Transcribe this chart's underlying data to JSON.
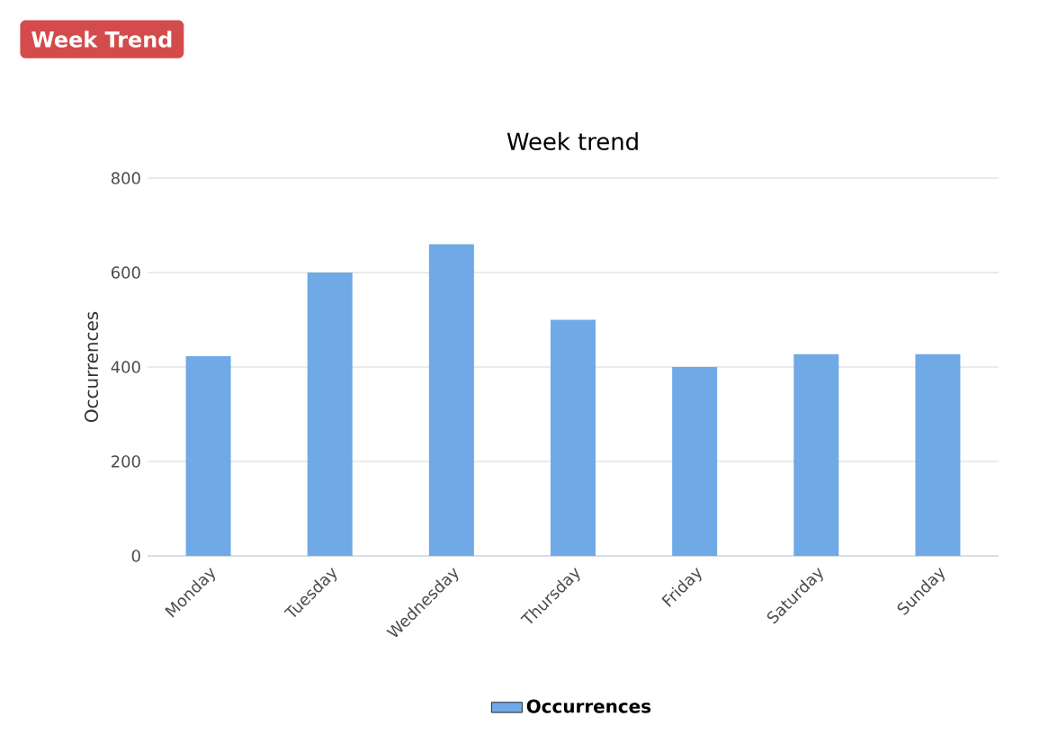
{
  "chart_data": {
    "type": "bar",
    "title": "Week trend",
    "ylabel": "Occurrences",
    "annotations": [
      "Week Trend"
    ],
    "categories": [
      "Monday",
      "Tuesday",
      "Wednesday",
      "Thursday",
      "Friday",
      "Saturday",
      "Sunday"
    ],
    "series": [
      {
        "name": "Occurrences",
        "color": "#6fa9e6",
        "values": [
          423,
          600,
          660,
          500,
          400,
          427,
          427
        ]
      }
    ],
    "ylim": [
      0,
      800
    ],
    "yticks": [
      0,
      200,
      400,
      600,
      800
    ],
    "grid": "y",
    "legend": "bottom"
  }
}
